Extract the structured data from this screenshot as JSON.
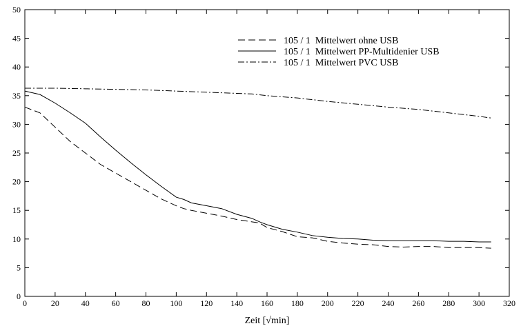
{
  "chart_data": {
    "type": "line",
    "title": "",
    "xlabel": "Zeit  [√min]",
    "ylabel": "",
    "xlim": [
      0,
      320
    ],
    "ylim": [
      0,
      50
    ],
    "xticks": [
      0,
      20,
      40,
      60,
      80,
      100,
      120,
      140,
      160,
      180,
      200,
      220,
      240,
      260,
      280,
      300,
      320
    ],
    "yticks": [
      0,
      5,
      10,
      15,
      20,
      25,
      30,
      35,
      40,
      45,
      50
    ],
    "grid": false,
    "legend_position": "top-right",
    "series": [
      {
        "name": "105 / 1  Mittelwert ohne USB",
        "dash": "dashed",
        "x": [
          0,
          10,
          20,
          30,
          40,
          50,
          60,
          70,
          80,
          90,
          100,
          105,
          110,
          120,
          130,
          140,
          150,
          155,
          160,
          170,
          180,
          190,
          200,
          210,
          220,
          230,
          240,
          250,
          260,
          270,
          280,
          290,
          300,
          308
        ],
        "y": [
          33.0,
          32.0,
          29.5,
          27.0,
          25.0,
          23.0,
          21.5,
          20.0,
          18.5,
          17.0,
          15.8,
          15.3,
          15.0,
          14.5,
          14.0,
          13.4,
          13.0,
          12.8,
          12.0,
          11.3,
          10.4,
          10.2,
          9.6,
          9.3,
          9.1,
          9.0,
          8.7,
          8.6,
          8.7,
          8.7,
          8.5,
          8.5,
          8.5,
          8.4
        ]
      },
      {
        "name": "105 / 1  Mittelwert PP-Multidenier USB",
        "dash": "solid",
        "x": [
          0,
          10,
          20,
          30,
          40,
          50,
          60,
          70,
          80,
          90,
          100,
          105,
          110,
          120,
          130,
          140,
          150,
          155,
          160,
          170,
          180,
          190,
          200,
          210,
          220,
          230,
          240,
          250,
          260,
          270,
          280,
          290,
          300,
          308
        ],
        "y": [
          35.8,
          35.2,
          33.7,
          32.0,
          30.2,
          27.8,
          25.5,
          23.3,
          21.2,
          19.2,
          17.3,
          16.9,
          16.3,
          15.8,
          15.3,
          14.3,
          13.6,
          13.0,
          12.5,
          11.7,
          11.2,
          10.6,
          10.3,
          10.1,
          10.0,
          9.8,
          9.7,
          9.7,
          9.7,
          9.7,
          9.6,
          9.6,
          9.5,
          9.5
        ]
      },
      {
        "name": "105 / 1  Mittelwert PVC USB",
        "dash": "dashdot",
        "x": [
          0,
          20,
          40,
          60,
          80,
          100,
          120,
          140,
          150,
          160,
          180,
          200,
          220,
          240,
          260,
          280,
          300,
          308
        ],
        "y": [
          36.3,
          36.3,
          36.2,
          36.1,
          36.0,
          35.8,
          35.6,
          35.4,
          35.3,
          35.0,
          34.6,
          34.0,
          33.5,
          33.0,
          32.6,
          32.0,
          31.4,
          31.1
        ]
      }
    ]
  }
}
